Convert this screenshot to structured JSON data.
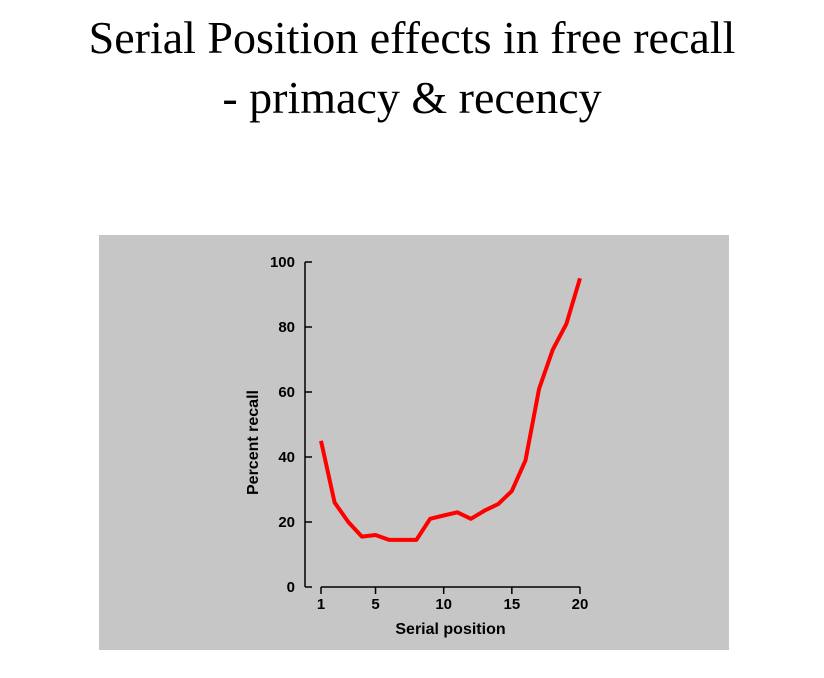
{
  "title": {
    "line1": "Serial Position effects in free recall",
    "line2": "- primacy & recency"
  },
  "chart_data": {
    "type": "line",
    "title": "Serial Position effects in free recall - primacy & recency",
    "xlabel": "Serial position",
    "ylabel": "Percent recall",
    "xlim": [
      1,
      20
    ],
    "ylim": [
      0,
      100
    ],
    "xticks": [
      1,
      5,
      10,
      15,
      20
    ],
    "yticks": [
      0,
      20,
      40,
      60,
      80,
      100
    ],
    "grid": false,
    "background_color": "#c6c6c6",
    "series": [
      {
        "color": "#ff0000",
        "x": [
          1,
          2,
          3,
          4,
          5,
          6,
          7,
          8,
          9,
          10,
          11,
          12,
          13,
          14,
          15,
          16,
          17,
          18,
          19,
          20
        ],
        "values": [
          45,
          26,
          20,
          15.5,
          16,
          14.5,
          14.5,
          14.5,
          21,
          22,
          23,
          21,
          23.5,
          25.5,
          29.5,
          39,
          61,
          73,
          81,
          95
        ]
      }
    ]
  }
}
